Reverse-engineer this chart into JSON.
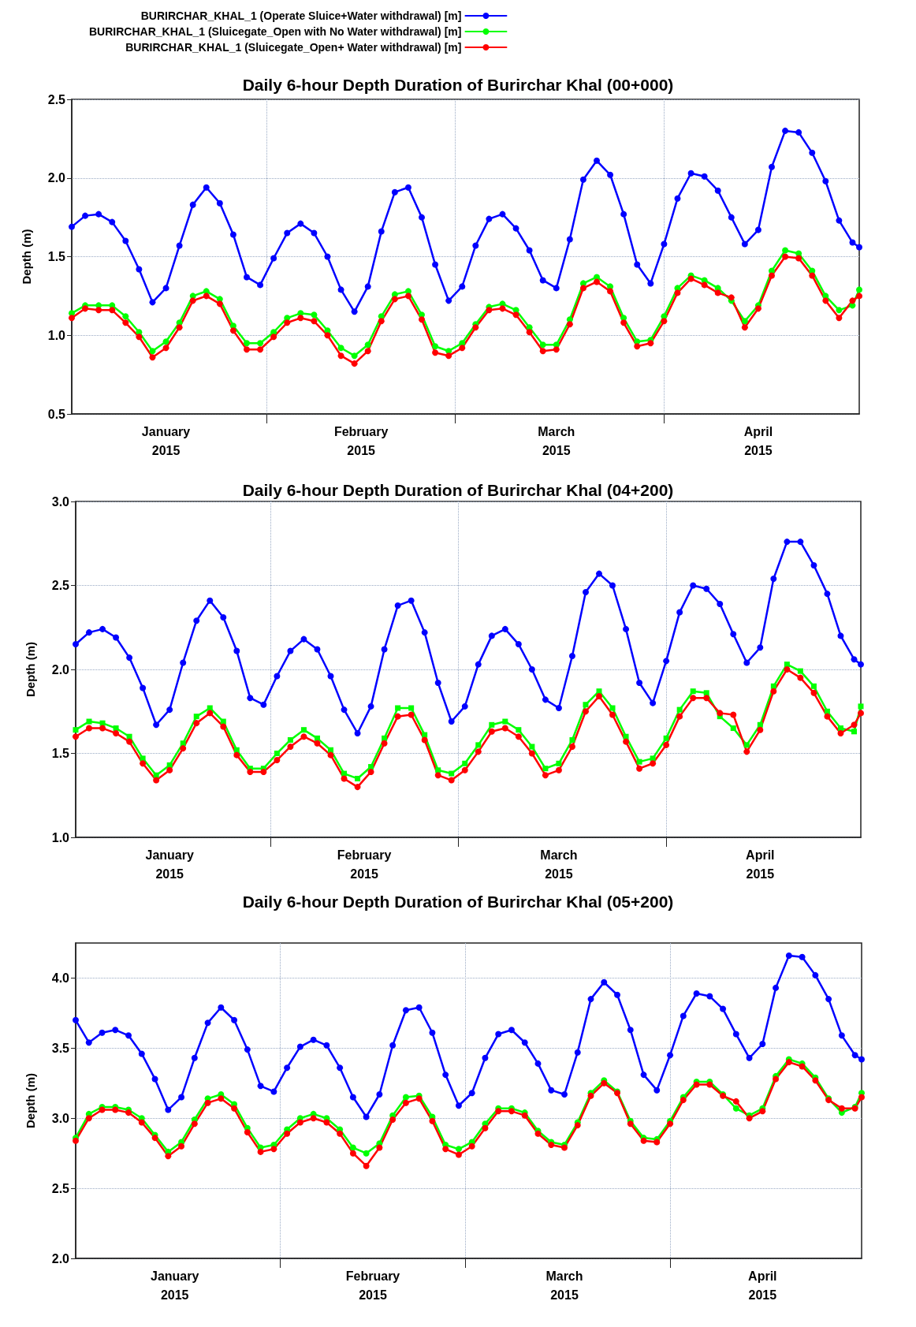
{
  "chart_data": [
    {
      "type": "line",
      "title": "Daily 6-hour Depth Duration of Burirchar Khal (00+000)",
      "ylabel": "Depth (m)",
      "legend": "top left",
      "grid": true,
      "marker": "circle",
      "line_style": "solid",
      "xlim": [
        "2015-01-03",
        "2015-04-30"
      ],
      "ylim": [
        0.5,
        2.5
      ],
      "yticks": [
        0.5,
        {
          "value": 1,
          "label": "1.0"
        },
        1.5,
        {
          "value": 2,
          "label": "2.0"
        },
        2.5
      ],
      "xticks": [
        {
          "value": "2015-02-01",
          "label": null
        },
        {
          "value": "2015-03-01",
          "label": null
        },
        {
          "value": "2015-04-01",
          "label": null
        },
        {
          "value": "2015-01-17",
          "label": "January\n2015"
        },
        {
          "value": "2015-02-15",
          "label": "February\n2015"
        },
        {
          "value": "2015-03-16",
          "label": "March\n2015"
        },
        {
          "value": "2015-04-15",
          "label": "April\n2015"
        }
      ],
      "x": [
        "2015-01-03",
        "2015-01-05",
        "2015-01-07",
        "2015-01-09",
        "2015-01-11",
        "2015-01-13",
        "2015-01-15",
        "2015-01-17",
        "2015-01-19",
        "2015-01-21",
        "2015-01-23",
        "2015-01-25",
        "2015-01-27",
        "2015-01-29",
        "2015-01-31",
        "2015-02-02",
        "2015-02-04",
        "2015-02-06",
        "2015-02-08",
        "2015-02-10",
        "2015-02-12",
        "2015-02-14",
        "2015-02-16",
        "2015-02-18",
        "2015-02-20",
        "2015-02-22",
        "2015-02-24",
        "2015-02-26",
        "2015-02-28",
        "2015-03-02",
        "2015-03-04",
        "2015-03-06",
        "2015-03-08",
        "2015-03-10",
        "2015-03-12",
        "2015-03-14",
        "2015-03-16",
        "2015-03-18",
        "2015-03-20",
        "2015-03-22",
        "2015-03-24",
        "2015-03-26",
        "2015-03-28",
        "2015-03-30",
        "2015-04-01",
        "2015-04-03",
        "2015-04-05",
        "2015-04-07",
        "2015-04-09",
        "2015-04-11",
        "2015-04-13",
        "2015-04-15",
        "2015-04-17",
        "2015-04-19",
        "2015-04-21",
        "2015-04-23",
        "2015-04-25",
        "2015-04-27",
        "2015-04-29",
        "2015-04-30"
      ],
      "series": [
        {
          "name": "BURIRCHAR_KHAL_1 (Operate Sluice+Water withdrawal) [m]",
          "color": "#0000ff",
          "values": [
            1.69,
            1.76,
            1.77,
            1.72,
            1.6,
            1.42,
            1.21,
            1.3,
            1.57,
            1.83,
            1.94,
            1.84,
            1.64,
            1.37,
            1.32,
            1.49,
            1.65,
            1.71,
            1.65,
            1.5,
            1.29,
            1.15,
            1.31,
            1.66,
            1.91,
            1.94,
            1.75,
            1.45,
            1.22,
            1.31,
            1.57,
            1.74,
            1.77,
            1.68,
            1.54,
            1.35,
            1.3,
            1.61,
            1.99,
            2.11,
            2.02,
            1.77,
            1.45,
            1.33,
            1.58,
            1.87,
            2.03,
            2.01,
            1.92,
            1.75,
            1.58,
            1.67,
            2.07,
            2.3,
            2.29,
            2.16,
            1.98,
            1.73,
            1.59,
            1.56
          ]
        },
        {
          "name": "BURIRCHAR_KHAL_1 (Sluicegate_Open with No Water withdrawal) [m]",
          "color": "#00ff00",
          "values": [
            1.14,
            1.19,
            1.19,
            1.19,
            1.12,
            1.02,
            0.9,
            0.96,
            1.08,
            1.25,
            1.28,
            1.23,
            1.06,
            0.95,
            0.95,
            1.02,
            1.11,
            1.14,
            1.13,
            1.03,
            0.92,
            0.87,
            0.94,
            1.12,
            1.26,
            1.28,
            1.13,
            0.93,
            0.9,
            0.95,
            1.07,
            1.18,
            1.2,
            1.16,
            1.05,
            0.94,
            0.94,
            1.1,
            1.33,
            1.37,
            1.31,
            1.11,
            0.96,
            0.97,
            1.12,
            1.3,
            1.38,
            1.35,
            1.3,
            1.22,
            1.09,
            1.19,
            1.41,
            1.54,
            1.52,
            1.41,
            1.25,
            1.16,
            1.19,
            1.29
          ]
        },
        {
          "name": "BURIRCHAR_KHAL_1 (Sluicegate_Open+ Water withdrawal) [m]",
          "color": "#ff0000",
          "values": [
            1.11,
            1.17,
            1.16,
            1.16,
            1.08,
            0.99,
            0.86,
            0.92,
            1.05,
            1.22,
            1.25,
            1.2,
            1.03,
            0.91,
            0.91,
            0.99,
            1.08,
            1.11,
            1.09,
            1.0,
            0.87,
            0.82,
            0.9,
            1.09,
            1.23,
            1.25,
            1.1,
            0.89,
            0.87,
            0.92,
            1.05,
            1.16,
            1.17,
            1.13,
            1.02,
            0.9,
            0.91,
            1.07,
            1.3,
            1.34,
            1.28,
            1.08,
            0.93,
            0.95,
            1.09,
            1.27,
            1.36,
            1.32,
            1.27,
            1.24,
            1.05,
            1.17,
            1.38,
            1.5,
            1.49,
            1.38,
            1.22,
            1.11,
            1.22,
            1.25
          ]
        }
      ]
    },
    {
      "type": "line",
      "title": "Daily 6-hour Depth Duration of Burirchar Khal (04+200)",
      "ylabel": "Depth (m)",
      "grid": true,
      "marker": "circle",
      "line_style": "solid",
      "xlim": [
        "2015-01-03",
        "2015-04-30"
      ],
      "ylim": [
        1,
        3
      ],
      "yticks": [
        {
          "value": 1,
          "label": "1.0"
        },
        1.5,
        {
          "value": 2,
          "label": "2.0"
        },
        2.5,
        {
          "value": 3,
          "label": "3.0"
        }
      ],
      "xticks": [
        {
          "value": "2015-02-01",
          "label": null
        },
        {
          "value": "2015-03-01",
          "label": null
        },
        {
          "value": "2015-04-01",
          "label": null
        },
        {
          "value": "2015-01-17",
          "label": "January\n2015"
        },
        {
          "value": "2015-02-15",
          "label": "February\n2015"
        },
        {
          "value": "2015-03-16",
          "label": "March\n2015"
        },
        {
          "value": "2015-04-15",
          "label": "April\n2015"
        }
      ],
      "x": [
        "2015-01-03",
        "2015-01-05",
        "2015-01-07",
        "2015-01-09",
        "2015-01-11",
        "2015-01-13",
        "2015-01-15",
        "2015-01-17",
        "2015-01-19",
        "2015-01-21",
        "2015-01-23",
        "2015-01-25",
        "2015-01-27",
        "2015-01-29",
        "2015-01-31",
        "2015-02-02",
        "2015-02-04",
        "2015-02-06",
        "2015-02-08",
        "2015-02-10",
        "2015-02-12",
        "2015-02-14",
        "2015-02-16",
        "2015-02-18",
        "2015-02-20",
        "2015-02-22",
        "2015-02-24",
        "2015-02-26",
        "2015-02-28",
        "2015-03-02",
        "2015-03-04",
        "2015-03-06",
        "2015-03-08",
        "2015-03-10",
        "2015-03-12",
        "2015-03-14",
        "2015-03-16",
        "2015-03-18",
        "2015-03-20",
        "2015-03-22",
        "2015-03-24",
        "2015-03-26",
        "2015-03-28",
        "2015-03-30",
        "2015-04-01",
        "2015-04-03",
        "2015-04-05",
        "2015-04-07",
        "2015-04-09",
        "2015-04-11",
        "2015-04-13",
        "2015-04-15",
        "2015-04-17",
        "2015-04-19",
        "2015-04-21",
        "2015-04-23",
        "2015-04-25",
        "2015-04-27",
        "2015-04-29",
        "2015-04-30"
      ],
      "series": [
        {
          "color": "#0000ff",
          "values": [
            2.15,
            2.22,
            2.24,
            2.19,
            2.07,
            1.89,
            1.67,
            1.76,
            2.04,
            2.29,
            2.41,
            2.31,
            2.11,
            1.83,
            1.79,
            1.96,
            2.11,
            2.18,
            2.12,
            1.96,
            1.76,
            1.62,
            1.78,
            2.12,
            2.38,
            2.41,
            2.22,
            1.92,
            1.69,
            1.78,
            2.03,
            2.2,
            2.24,
            2.15,
            2.0,
            1.82,
            1.77,
            2.08,
            2.46,
            2.57,
            2.5,
            2.24,
            1.92,
            1.8,
            2.05,
            2.34,
            2.5,
            2.48,
            2.39,
            2.21,
            2.04,
            2.13,
            2.54,
            2.76,
            2.76,
            2.62,
            2.45,
            2.2,
            2.06,
            2.03
          ]
        },
        {
          "color": "#00ff00",
          "marker": "square",
          "values": [
            1.64,
            1.69,
            1.68,
            1.65,
            1.6,
            1.47,
            1.37,
            1.43,
            1.56,
            1.72,
            1.77,
            1.69,
            1.52,
            1.41,
            1.41,
            1.5,
            1.58,
            1.64,
            1.59,
            1.52,
            1.38,
            1.35,
            1.42,
            1.59,
            1.77,
            1.77,
            1.61,
            1.4,
            1.38,
            1.44,
            1.55,
            1.67,
            1.69,
            1.64,
            1.54,
            1.41,
            1.44,
            1.58,
            1.79,
            1.87,
            1.77,
            1.6,
            1.45,
            1.47,
            1.59,
            1.76,
            1.87,
            1.86,
            1.72,
            1.65,
            1.55,
            1.67,
            1.9,
            2.03,
            1.99,
            1.9,
            1.75,
            1.65,
            1.63,
            1.78
          ]
        },
        {
          "color": "#ff0000",
          "values": [
            1.6,
            1.65,
            1.65,
            1.62,
            1.57,
            1.44,
            1.34,
            1.4,
            1.53,
            1.68,
            1.74,
            1.66,
            1.49,
            1.39,
            1.39,
            1.46,
            1.54,
            1.6,
            1.56,
            1.49,
            1.35,
            1.3,
            1.39,
            1.56,
            1.72,
            1.73,
            1.58,
            1.37,
            1.34,
            1.4,
            1.51,
            1.63,
            1.65,
            1.6,
            1.5,
            1.37,
            1.4,
            1.54,
            1.75,
            1.84,
            1.73,
            1.57,
            1.41,
            1.44,
            1.55,
            1.72,
            1.83,
            1.83,
            1.74,
            1.73,
            1.51,
            1.64,
            1.87,
            2.0,
            1.95,
            1.86,
            1.72,
            1.62,
            1.67,
            1.74
          ]
        }
      ]
    },
    {
      "type": "line",
      "title": "Daily 6-hour Depth Duration of Burirchar Khal (05+200)",
      "ylabel": "Depth (m)",
      "grid": true,
      "marker": "circle",
      "line_style": "solid",
      "xlim": [
        "2015-01-01",
        "2015-04-30"
      ],
      "ylim": [
        2,
        4.25
      ],
      "yticks": [
        {
          "value": 2,
          "label": "2.0"
        },
        2.5,
        {
          "value": 3,
          "label": "3.0"
        },
        3.5,
        {
          "value": 4,
          "label": "4.0"
        }
      ],
      "xticks": [
        {
          "value": "2015-02-01",
          "label": null
        },
        {
          "value": "2015-03-01",
          "label": null
        },
        {
          "value": "2015-04-01",
          "label": null
        },
        {
          "value": "2015-01-16",
          "label": "January\n2015"
        },
        {
          "value": "2015-02-15",
          "label": "February\n2015"
        },
        {
          "value": "2015-03-16",
          "label": "March\n2015"
        },
        {
          "value": "2015-04-15",
          "label": "April\n2015"
        }
      ],
      "x": [
        "2015-01-01",
        "2015-01-03",
        "2015-01-05",
        "2015-01-07",
        "2015-01-09",
        "2015-01-11",
        "2015-01-13",
        "2015-01-15",
        "2015-01-17",
        "2015-01-19",
        "2015-01-21",
        "2015-01-23",
        "2015-01-25",
        "2015-01-27",
        "2015-01-29",
        "2015-01-31",
        "2015-02-02",
        "2015-02-04",
        "2015-02-06",
        "2015-02-08",
        "2015-02-10",
        "2015-02-12",
        "2015-02-14",
        "2015-02-16",
        "2015-02-18",
        "2015-02-20",
        "2015-02-22",
        "2015-02-24",
        "2015-02-26",
        "2015-02-28",
        "2015-03-02",
        "2015-03-04",
        "2015-03-06",
        "2015-03-08",
        "2015-03-10",
        "2015-03-12",
        "2015-03-14",
        "2015-03-16",
        "2015-03-18",
        "2015-03-20",
        "2015-03-22",
        "2015-03-24",
        "2015-03-26",
        "2015-03-28",
        "2015-03-30",
        "2015-04-01",
        "2015-04-03",
        "2015-04-05",
        "2015-04-07",
        "2015-04-09",
        "2015-04-11",
        "2015-04-13",
        "2015-04-15",
        "2015-04-17",
        "2015-04-19",
        "2015-04-21",
        "2015-04-23",
        "2015-04-25",
        "2015-04-27",
        "2015-04-29",
        "2015-04-30"
      ],
      "series": [
        {
          "color": "#0000ff",
          "values": [
            3.7,
            3.54,
            3.61,
            3.63,
            3.59,
            3.46,
            3.28,
            3.06,
            3.15,
            3.43,
            3.68,
            3.79,
            3.7,
            3.49,
            3.23,
            3.19,
            3.36,
            3.51,
            3.56,
            3.52,
            3.36,
            3.15,
            3.01,
            3.17,
            3.52,
            3.77,
            3.79,
            3.61,
            3.31,
            3.09,
            3.18,
            3.43,
            3.6,
            3.63,
            3.54,
            3.39,
            3.2,
            3.17,
            3.47,
            3.85,
            3.97,
            3.88,
            3.63,
            3.31,
            3.2,
            3.45,
            3.73,
            3.89,
            3.87,
            3.78,
            3.6,
            3.43,
            3.53,
            3.93,
            4.16,
            4.15,
            4.02,
            3.85,
            3.59,
            3.45,
            3.42
          ]
        },
        {
          "color": "#00ff00",
          "values": [
            2.86,
            3.03,
            3.08,
            3.08,
            3.06,
            3.0,
            2.88,
            2.76,
            2.83,
            2.99,
            3.14,
            3.17,
            3.1,
            2.93,
            2.79,
            2.81,
            2.92,
            3.0,
            3.03,
            3.0,
            2.92,
            2.79,
            2.75,
            2.82,
            3.02,
            3.15,
            3.16,
            3.01,
            2.81,
            2.78,
            2.83,
            2.96,
            3.07,
            3.07,
            3.04,
            2.91,
            2.83,
            2.81,
            2.97,
            3.18,
            3.27,
            3.19,
            2.98,
            2.86,
            2.85,
            2.98,
            3.15,
            3.26,
            3.26,
            3.17,
            3.07,
            3.02,
            3.07,
            3.3,
            3.42,
            3.39,
            3.29,
            3.14,
            3.04,
            3.08,
            3.18
          ]
        },
        {
          "color": "#ff0000",
          "values": [
            2.84,
            3.0,
            3.06,
            3.06,
            3.04,
            2.97,
            2.86,
            2.73,
            2.8,
            2.96,
            3.11,
            3.14,
            3.07,
            2.9,
            2.76,
            2.78,
            2.89,
            2.97,
            3.0,
            2.97,
            2.89,
            2.75,
            2.66,
            2.79,
            2.99,
            3.11,
            3.14,
            2.98,
            2.78,
            2.74,
            2.8,
            2.93,
            3.05,
            3.05,
            3.02,
            2.89,
            2.81,
            2.79,
            2.95,
            3.16,
            3.25,
            3.18,
            2.96,
            2.84,
            2.83,
            2.96,
            3.13,
            3.24,
            3.24,
            3.16,
            3.12,
            3.0,
            3.05,
            3.28,
            3.4,
            3.37,
            3.27,
            3.13,
            3.07,
            3.07,
            3.15
          ]
        }
      ]
    }
  ]
}
